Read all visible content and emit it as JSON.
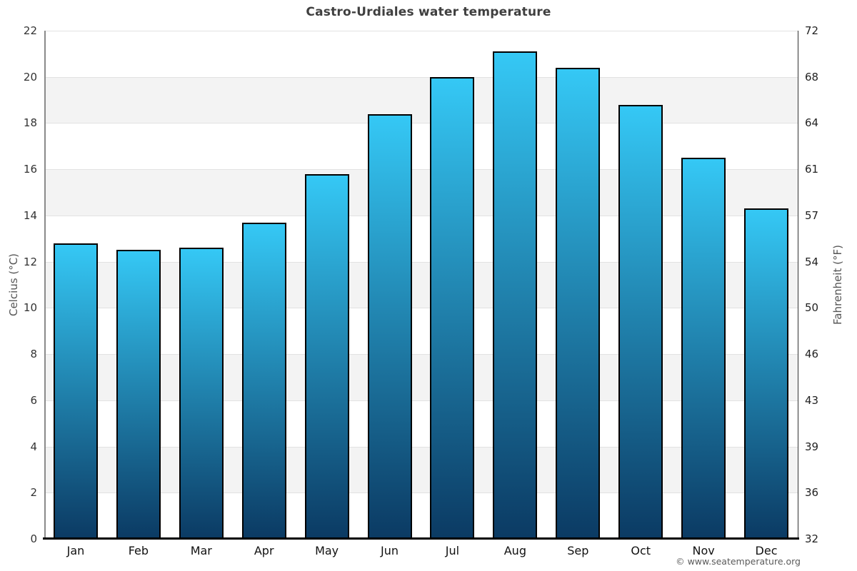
{
  "page": {
    "credit": "© www.seatemperature.org"
  },
  "chart_data": {
    "type": "bar",
    "title": "Castro-Urdiales water temperature",
    "categories": [
      "Jan",
      "Feb",
      "Mar",
      "Apr",
      "May",
      "Jun",
      "Jul",
      "Aug",
      "Sep",
      "Oct",
      "Nov",
      "Dec"
    ],
    "values": [
      12.8,
      12.5,
      12.6,
      13.7,
      15.8,
      18.4,
      20.0,
      21.1,
      20.4,
      18.8,
      16.5,
      14.3
    ],
    "series_name": "water temperature (°C)",
    "xlabel": "",
    "ylabel_left": "Celcius (°C)",
    "ylabel_right": "Fahrenheit (°F)",
    "ylim": [
      0,
      22
    ],
    "yticks_c": [
      "0",
      "2",
      "4",
      "6",
      "8",
      "10",
      "12",
      "14",
      "16",
      "18",
      "20",
      "22"
    ],
    "yticks_f": [
      "32",
      "36",
      "39",
      "43",
      "46",
      "50",
      "54",
      "57",
      "61",
      "64",
      "68",
      "72"
    ],
    "grid": "horizontal-bands",
    "legend": "none",
    "colors": {
      "bar_gradient_top": "#35c8f5",
      "bar_gradient_bottom": "#0b3a63",
      "bar_border": "#000000",
      "band_shade": "#f3f3f3",
      "band_plain": "#ffffff",
      "gridline": "#e2e2e2",
      "title_text": "#3f3f3f",
      "axis_title_text": "#555555",
      "tick_text": "#222222",
      "credit_text": "#5a5a5a"
    }
  }
}
